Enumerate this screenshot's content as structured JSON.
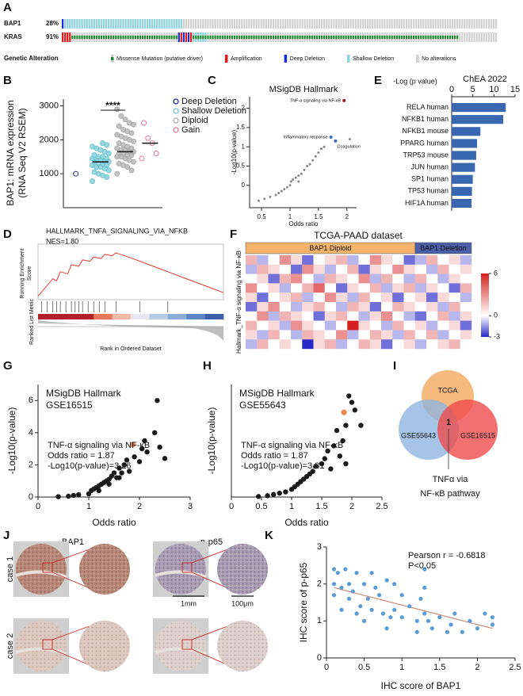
{
  "chart_data": [
    {
      "panel": "A",
      "type": "oncoprint",
      "genes": [
        "BAP1",
        "KRAS"
      ],
      "frequencies": [
        28,
        91
      ],
      "value_labels": [
        "28%",
        "91%"
      ],
      "legend_title": "Genetic Alteration",
      "legend": [
        {
          "name": "Missense Mutation (putative driver)",
          "color": "#1f8a2e"
        },
        {
          "name": "Amplification",
          "color": "#e41a1c"
        },
        {
          "name": "Deep Deletion",
          "color": "#1c2bd6"
        },
        {
          "name": "Shallow Deletion",
          "color": "#8fd3de"
        },
        {
          "name": "No alterations",
          "color": "#d0d0d0"
        }
      ]
    },
    {
      "panel": "B",
      "type": "dotplot",
      "ylabel": [
        "BAP1: mRNA expression",
        "(RNA Seq V2 RSEM)"
      ],
      "ylim": [
        0,
        3200
      ],
      "yticks": [
        1000,
        2000,
        3000
      ],
      "significance": "****",
      "series": [
        {
          "name": "Deep Deletion",
          "color": "#2b2b9a",
          "hollow": true,
          "values": [
            1000
          ]
        },
        {
          "name": "Shallow Deletion",
          "color": "#6fc6d3",
          "hollow": false,
          "median": 1350,
          "values": [
            780,
            900,
            950,
            1000,
            1050,
            1100,
            1150,
            1200,
            1200,
            1250,
            1250,
            1300,
            1300,
            1350,
            1350,
            1350,
            1400,
            1400,
            1450,
            1450,
            1500,
            1500,
            1550,
            1600,
            1650,
            1700,
            1750,
            1800,
            1850,
            1900
          ]
        },
        {
          "name": "Diploid",
          "color": "#aaaaaa",
          "hollow": false,
          "median": 1650,
          "values": [
            1000,
            1100,
            1200,
            1250,
            1300,
            1350,
            1400,
            1450,
            1500,
            1500,
            1550,
            1550,
            1600,
            1600,
            1650,
            1650,
            1700,
            1700,
            1750,
            1750,
            1800,
            1850,
            1900,
            1950,
            2000,
            2050,
            2100,
            2150,
            2200,
            2250,
            2300,
            2400,
            2450,
            2500,
            2600,
            2700,
            2900
          ]
        },
        {
          "name": "Gain",
          "color": "#e07a98",
          "hollow": true,
          "median": 1900,
          "values": [
            1450,
            1600,
            1900,
            2050,
            2500
          ]
        }
      ]
    },
    {
      "panel": "C",
      "type": "scatter",
      "title": "MSigDB Hallmark",
      "xlabel": "Odds ratio",
      "ylabel": "-Log10(p-value)",
      "color": "#888888",
      "x": [
        0.45,
        0.55,
        0.65,
        0.75,
        0.8,
        0.85,
        0.9,
        0.95,
        1.0,
        1.02,
        1.05,
        1.1,
        1.15,
        1.2,
        1.25,
        1.3,
        1.35,
        1.4,
        1.45,
        1.5,
        1.55,
        1.6,
        2.05,
        1.15
      ],
      "values": [
        -0.4,
        -0.35,
        -0.3,
        -0.25,
        -0.2,
        -0.15,
        -0.1,
        -0.05,
        0.0,
        0.1,
        0.15,
        0.2,
        0.25,
        0.3,
        0.4,
        0.5,
        0.55,
        0.65,
        0.75,
        0.85,
        0.95,
        1.0,
        1.2,
        0.1
      ],
      "highlights": [
        {
          "label": "TNF-α signaling via NF-κB",
          "x": 1.95,
          "y": 2.2,
          "color": "#9b1c1c"
        },
        {
          "label": "Inflammatory response",
          "x": 1.72,
          "y": 1.25,
          "color": "#3a6fc4"
        },
        {
          "label": "Coagulation",
          "x": 1.8,
          "y": 1.15,
          "color": "#3a6fc4"
        }
      ],
      "xlim": [
        0.29,
        2.17
      ],
      "xticks": [
        0.5,
        1,
        1.5,
        2
      ],
      "ylim": [
        -0.58,
        2.3
      ],
      "yticks": [
        0,
        0.5,
        1,
        1.5,
        2
      ]
    },
    {
      "panel": "E",
      "type": "hbar",
      "title": "ChEA 2022",
      "xlabel": "-Log (p value)",
      "color": "#3a68b0",
      "categories": [
        "RELA human",
        "NFKB1 human",
        "NFKB1 mouse",
        "PPARG human",
        "TRP53 mouse",
        "JUN human",
        "SP1 human",
        "TP53 human",
        "HIF1A human"
      ],
      "values": [
        12.8,
        12.2,
        6.8,
        6.0,
        5.8,
        5.5,
        5.0,
        4.8,
        4.7
      ],
      "xlim": [
        0,
        15
      ],
      "xticks": [
        0,
        5,
        10,
        15
      ]
    },
    {
      "panel": "D",
      "type": "gsea",
      "title": "HALLMARK_TNFA_SIGNALING_VIA_NFKB",
      "nes": "NES=1.80",
      "ylabel": [
        "Running Enrichment",
        "Score"
      ],
      "metric_label": "Ranked List Metric",
      "xlabel": "Rank in Ordered Dataset",
      "color": "#e03c31",
      "x": [
        0,
        0.08,
        0.1,
        0.12,
        0.16,
        0.18,
        0.22,
        0.24,
        0.28,
        0.3,
        0.34,
        0.36,
        0.4,
        0.42,
        0.5,
        0.6,
        0.7,
        0.8,
        0.9,
        1
      ],
      "values": [
        0,
        0.25,
        0.22,
        0.35,
        0.32,
        0.45,
        0.43,
        0.52,
        0.5,
        0.56,
        0.54,
        0.6,
        0.58,
        0.62,
        0.55,
        0.45,
        0.35,
        0.25,
        0.15,
        0.05
      ],
      "hits": [
        0.02,
        0.05,
        0.08,
        0.1,
        0.12,
        0.15,
        0.18,
        0.2,
        0.22,
        0.24,
        0.27,
        0.3,
        0.33,
        0.36,
        0.42,
        0.55,
        0.7
      ],
      "xlim": [
        0,
        1
      ],
      "ylim": [
        -0.05,
        0.7
      ]
    },
    {
      "panel": "F",
      "type": "heatmap",
      "title": "TCGA-PAAD dataset",
      "ylabel": "Hallmark_TNF-α signaling via NF-κB",
      "groups": [
        {
          "name": "BAP1 Diploid",
          "color": "#f4b36b"
        },
        {
          "name": "BAP1 Deletion",
          "color": "#4b5ea8"
        }
      ],
      "group_columns": [
        15,
        5
      ],
      "zlim": [
        -3,
        6
      ],
      "zticks": [
        6,
        0,
        -3
      ],
      "matrix": [
        [
          2,
          -1,
          0,
          3,
          1,
          -2,
          0,
          1,
          2,
          -1,
          0,
          3,
          1,
          0,
          -2,
          -1,
          2,
          0,
          1,
          -1
        ],
        [
          -1,
          2,
          1,
          0,
          -2,
          3,
          1,
          -1,
          0,
          2,
          -2,
          1,
          0,
          3,
          1,
          0,
          -1,
          2,
          0,
          1
        ],
        [
          0,
          1,
          -2,
          2,
          3,
          0,
          -1,
          2,
          1,
          0,
          3,
          -1,
          2,
          0,
          -1,
          2,
          0,
          -1,
          1,
          0
        ],
        [
          3,
          0,
          1,
          -1,
          0,
          2,
          4,
          0,
          -2,
          1,
          0,
          2,
          -1,
          1,
          2,
          -1,
          1,
          0,
          -2,
          2
        ],
        [
          1,
          -2,
          0,
          1,
          2,
          -1,
          0,
          3,
          1,
          -1,
          2,
          0,
          1,
          -2,
          0,
          1,
          -2,
          1,
          0,
          -1
        ],
        [
          -2,
          1,
          3,
          0,
          -1,
          1,
          2,
          0,
          -1,
          2,
          1,
          -2,
          0,
          2,
          1,
          0,
          1,
          -1,
          2,
          0
        ],
        [
          0,
          3,
          -1,
          2,
          1,
          0,
          -2,
          1,
          2,
          0,
          -1,
          1,
          3,
          0,
          -1,
          -2,
          0,
          2,
          -1,
          1
        ],
        [
          2,
          0,
          1,
          -1,
          3,
          1,
          0,
          -1,
          0,
          6,
          1,
          0,
          -1,
          2,
          0,
          1,
          -1,
          0,
          1,
          -2
        ],
        [
          1,
          -1,
          2,
          0,
          -1,
          2,
          1,
          0,
          3,
          -1,
          0,
          2,
          1,
          -1,
          2,
          0,
          2,
          -1,
          0,
          1
        ],
        [
          -1,
          2,
          0,
          1,
          0,
          -3,
          1,
          2,
          -1,
          0,
          2,
          1,
          -2,
          0,
          1,
          -1,
          0,
          1,
          2,
          0
        ]
      ]
    },
    {
      "panel": "G",
      "type": "scatter",
      "title": [
        "MSigDB Hallmark",
        "GSE16515"
      ],
      "annotations": [
        "TNF-α signaling via NF-κB",
        "Odds ratio = 1.87",
        "-Log10(p-value)=3.26"
      ],
      "annotation_color": "#e8894a",
      "highlight": {
        "x": 1.87,
        "y": 3.26,
        "color": "#e8894a"
      },
      "xlabel": "Odds ratio",
      "ylabel": "-Log10(p-value)",
      "color": "#1a1a1a",
      "x": [
        0.4,
        0.6,
        0.7,
        0.8,
        1.0,
        1.05,
        1.1,
        1.15,
        1.2,
        1.25,
        1.3,
        1.35,
        1.4,
        1.45,
        1.5,
        1.55,
        1.6,
        1.65,
        1.7,
        1.75,
        1.8,
        1.9,
        2.0,
        2.05,
        2.1,
        2.15,
        2.3,
        2.35,
        2.4,
        2.5,
        1.2,
        1.4,
        1.6
      ],
      "values": [
        0.02,
        0.05,
        0.1,
        0.15,
        0.2,
        0.4,
        0.5,
        0.6,
        0.7,
        0.8,
        0.9,
        1.0,
        1.1,
        1.3,
        1.5,
        1.2,
        1.8,
        1.5,
        2.0,
        2.3,
        1.6,
        2.5,
        2.2,
        3.0,
        3.5,
        2.8,
        4.0,
        6.0,
        3.1,
        2.4,
        0.4,
        0.8,
        1.2
      ],
      "xlim": [
        0,
        3
      ],
      "xticks": [
        0,
        1,
        2,
        3
      ],
      "ylim": [
        0,
        7
      ],
      "yticks": [
        0,
        2,
        4,
        6
      ]
    },
    {
      "panel": "H",
      "type": "scatter",
      "title": [
        "MSigDB Hallmark",
        "GSE55643"
      ],
      "annotations": [
        "TNF-α signaling via NF-κB",
        "Odds ratio = 1.87",
        "-Log10(p-value)=3.31"
      ],
      "annotation_color": "#e8894a",
      "highlight": {
        "x": 1.87,
        "y": 3.31,
        "color": "#e8894a"
      },
      "xlabel": "Odds ratio",
      "ylabel": "-Log10(p-value)",
      "color": "#1a1a1a",
      "x": [
        0.45,
        0.6,
        0.7,
        0.8,
        0.9,
        1.0,
        1.05,
        1.1,
        1.15,
        1.2,
        1.25,
        1.3,
        1.35,
        1.4,
        1.5,
        1.55,
        1.6,
        1.65,
        1.7,
        1.75,
        1.8,
        1.85,
        1.9,
        1.95,
        2.0,
        2.05,
        2.15,
        1.9
      ],
      "values": [
        0.02,
        0.05,
        0.1,
        0.15,
        0.2,
        0.3,
        0.4,
        0.5,
        0.6,
        0.7,
        0.8,
        0.9,
        1.0,
        1.2,
        1.3,
        1.5,
        1.8,
        1.1,
        2.0,
        2.6,
        1.6,
        2.2,
        2.8,
        3.95,
        3.7,
        3.4,
        2.8,
        1.3
      ],
      "xlim": [
        0,
        2.5
      ],
      "xticks": [
        0,
        0.5,
        1,
        1.5,
        2,
        2.5
      ],
      "ylim": [
        0,
        4.4
      ]
    },
    {
      "panel": "I",
      "type": "venn",
      "sets": [
        {
          "name": "TCGA",
          "color": "#f2a65a"
        },
        {
          "name": "GSE55643",
          "color": "#8db4e2"
        },
        {
          "name": "GSE16515",
          "color": "#f04848"
        }
      ],
      "intersection": 1,
      "label": [
        "TNFα via",
        "NF-κB pathway"
      ]
    },
    {
      "panel": "J",
      "type": "ihc",
      "columns": [
        "BAP1",
        "p-p65"
      ],
      "rows": [
        "case 1",
        "case 2"
      ],
      "scale_bars": [
        "1mm",
        "100μm"
      ]
    },
    {
      "panel": "K",
      "type": "scatter",
      "xlabel": "IHC score of BAP1",
      "ylabel": "IHC score of p-p65",
      "annotations": [
        "Pearson r = -0.6818",
        "P<0.05"
      ],
      "color": "#5b9bd5",
      "x": [
        0.1,
        0.1,
        0.1,
        0.15,
        0.2,
        0.2,
        0.25,
        0.3,
        0.3,
        0.35,
        0.4,
        0.4,
        0.45,
        0.5,
        0.5,
        0.55,
        0.6,
        0.6,
        0.65,
        0.7,
        0.75,
        0.8,
        0.8,
        0.85,
        0.9,
        0.9,
        1.0,
        1.0,
        1.1,
        1.2,
        1.2,
        1.25,
        1.3,
        1.3,
        1.3,
        1.35,
        1.4,
        1.5,
        1.6,
        1.65,
        1.7,
        1.8,
        1.9,
        2.0,
        2.1,
        2.2,
        2.2
      ],
      "values": [
        2.4,
        2.0,
        1.7,
        2.3,
        1.9,
        1.3,
        2.4,
        2.0,
        1.6,
        1.8,
        1.2,
        2.3,
        1.4,
        2.0,
        1.0,
        1.6,
        2.3,
        1.3,
        1.9,
        1.7,
        1.2,
        2.1,
        0.8,
        1.1,
        2.0,
        1.3,
        1.7,
        1.1,
        1.4,
        1.0,
        0.7,
        1.6,
        2.4,
        1.9,
        1.2,
        1.0,
        0.8,
        1.1,
        0.7,
        0.9,
        1.2,
        0.7,
        1.0,
        0.8,
        1.2,
        1.1,
        0.9
      ],
      "fit": {
        "x": [
          0.1,
          2.2
        ],
        "values": [
          1.9,
          0.8
        ],
        "color": "#c98a7a"
      },
      "xlim": [
        0,
        2.5
      ],
      "xticks": [
        0,
        0.5,
        1,
        1.5,
        2,
        2.5
      ],
      "ylim": [
        0,
        3
      ],
      "yticks": [
        0,
        1,
        2,
        3
      ]
    }
  ]
}
